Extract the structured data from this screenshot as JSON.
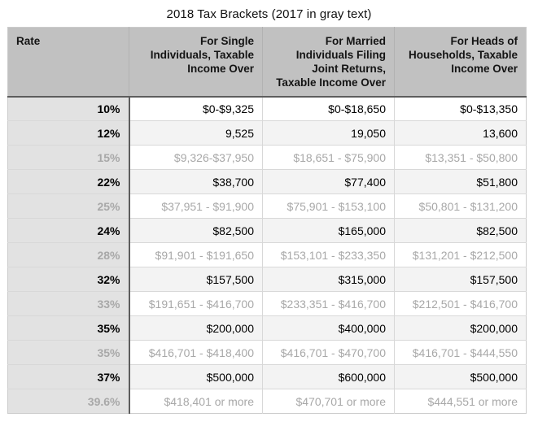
{
  "title": "2018 Tax Brackets (2017 in gray text)",
  "colors": {
    "header_bg": "#c1c1c1",
    "rate_column_bg": "#e2e2e2",
    "alt_row_bg": "#f3f3f3",
    "gray_2017_text": "#a8a8a8",
    "black_2018_text": "#000000",
    "dark_divider": "#5d5d5d"
  },
  "table": {
    "columns": [
      {
        "label": "Rate"
      },
      {
        "label": "For Single Individuals, Taxable Income Over"
      },
      {
        "label": "For Married Individuals Filing Joint Returns, Taxable Income Over"
      },
      {
        "label": "For Heads of Households, Taxable Income Over"
      }
    ],
    "rows": [
      {
        "year": "2018",
        "rate": "10%",
        "single": "$0-$9,325",
        "married": "$0-$18,650",
        "heads": "$0-$13,350"
      },
      {
        "year": "2018",
        "rate": "12%",
        "single": "9,525",
        "married": "19,050",
        "heads": "13,600"
      },
      {
        "year": "2017",
        "rate": "15%",
        "single": "$9,326-$37,950",
        "married": "$18,651 - $75,900",
        "heads": "$13,351 - $50,800"
      },
      {
        "year": "2018",
        "rate": "22%",
        "single": "$38,700",
        "married": "$77,400",
        "heads": "$51,800"
      },
      {
        "year": "2017",
        "rate": "25%",
        "single": "$37,951 - $91,900",
        "married": "$75,901 - $153,100",
        "heads": "$50,801 - $131,200"
      },
      {
        "year": "2018",
        "rate": "24%",
        "single": "$82,500",
        "married": "$165,000",
        "heads": "$82,500"
      },
      {
        "year": "2017",
        "rate": "28%",
        "single": "$91,901 - $191,650",
        "married": "$153,101 - $233,350",
        "heads": "$131,201 - $212,500"
      },
      {
        "year": "2018",
        "rate": "32%",
        "single": "$157,500",
        "married": "$315,000",
        "heads": "$157,500"
      },
      {
        "year": "2017",
        "rate": "33%",
        "single": "$191,651 - $416,700",
        "married": "$233,351 - $416,700",
        "heads": "$212,501 - $416,700"
      },
      {
        "year": "2018",
        "rate": "35%",
        "single": "$200,000",
        "married": "$400,000",
        "heads": "$200,000"
      },
      {
        "year": "2017",
        "rate": "35%",
        "single": "$416,701 - $418,400",
        "married": "$416,701 - $470,700",
        "heads": "$416,701 - $444,550"
      },
      {
        "year": "2018",
        "rate": "37%",
        "single": "$500,000",
        "married": "$600,000",
        "heads": "$500,000"
      },
      {
        "year": "2017",
        "rate": "39.6%",
        "single": "$418,401 or more",
        "married": "$470,701 or more",
        "heads": "$444,551 or more"
      }
    ]
  }
}
